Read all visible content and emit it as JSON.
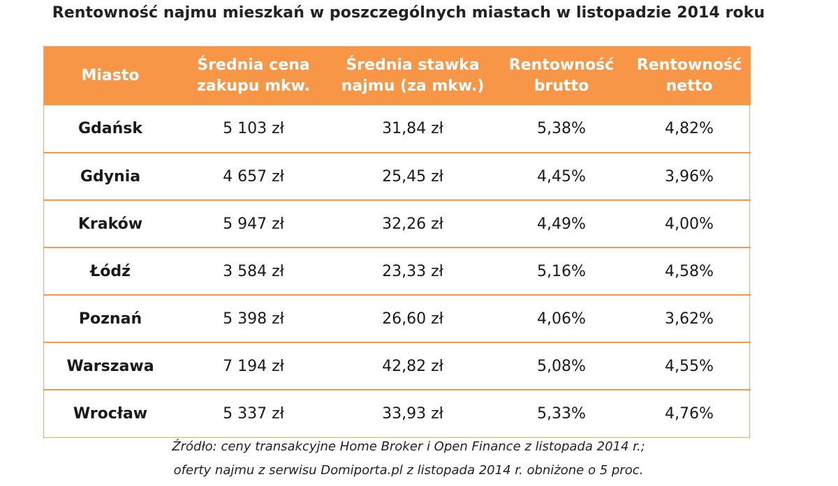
{
  "title": "Rentowność najmu mieszkań w poszczególnych miastach w listopadzie 2014 roku",
  "colors": {
    "header_bg": "#f79646",
    "header_text": "#ffffff",
    "row_divider": "#f79646"
  },
  "chart_data": {
    "type": "table",
    "title": "Rentowność najmu mieszkań w poszczególnych miastach w listopadzie 2014 roku",
    "columns": [
      [
        "Miasto"
      ],
      [
        "Średnia cena",
        "zakupu mkw."
      ],
      [
        "Średnia stawka",
        "najmu (za mkw.)"
      ],
      [
        "Rentowność",
        "brutto"
      ],
      [
        "Rentowność",
        "netto"
      ]
    ],
    "rows": [
      [
        "Gdańsk",
        "5 103 zł",
        "31,84  zł",
        "5,38%",
        "4,82%"
      ],
      [
        "Gdynia",
        "4 657 zł",
        "25,45  zł",
        "4,45%",
        "3,96%"
      ],
      [
        "Kraków",
        "5 947 zł",
        "32,26  zł",
        "4,49%",
        "4,00%"
      ],
      [
        "Łódź",
        "3 584 zł",
        "23,33  zł",
        "5,16%",
        "4,58%"
      ],
      [
        "Poznań",
        "5 398 zł",
        "26,60  zł",
        "4,06%",
        "3,62%"
      ],
      [
        "Warszawa",
        "7 194 zł",
        "42,82  zł",
        "5,08%",
        "4,55%"
      ],
      [
        "Wrocław",
        "5 337 zł",
        "33,93  zł",
        "5,33%",
        "4,76%"
      ]
    ]
  },
  "source": {
    "line1": "Źródło: ceny transakcyjne  Home Broker i Open Finance z listopada 2014 r.;",
    "line2": "oferty najmu z serwisu Domiporta.pl z listopada 2014 r. obniżone o 5 proc."
  }
}
